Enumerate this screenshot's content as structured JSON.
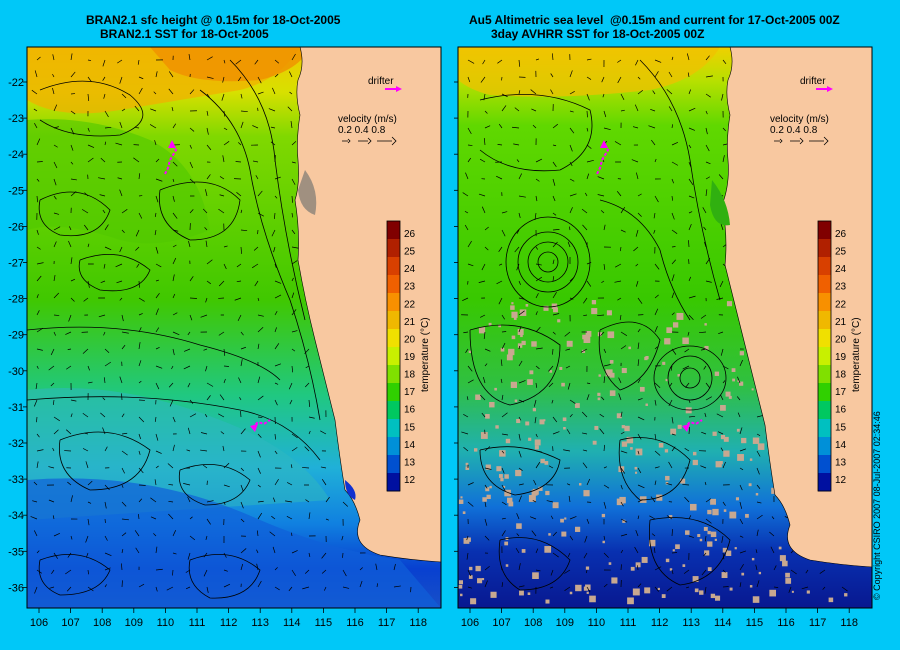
{
  "titles": {
    "left_line1": "BRAN2.1 sfc height @ 0.15m for 18-Oct-2005",
    "left_line2": "BRAN2.1 SST for 18-Oct-2005",
    "right_line1": "Au5 Altimetric sea level  @0.15m and current for 17-Oct-2005 00Z",
    "right_line2": "3day AVHRR SST for 18-Oct-2005 00Z"
  },
  "axes": {
    "lon_ticks": [
      "106",
      "107",
      "108",
      "109",
      "110",
      "111",
      "112",
      "113",
      "114",
      "115",
      "116",
      "117",
      "118"
    ],
    "lat_ticks": [
      "-22",
      "-23",
      "-24",
      "-25",
      "-26",
      "-27",
      "-28",
      "-29",
      "-30",
      "-31",
      "-32",
      "-33",
      "-34",
      "-35",
      "-36"
    ]
  },
  "legend": {
    "drifter_label": "drifter",
    "velocity_label": "velocity (m/s)",
    "velocity_scale": "0.2 0.4 0.8",
    "colorbar_label": "temperature (°C)",
    "colorbar_ticks": [
      "26",
      "25",
      "24",
      "23",
      "22",
      "21",
      "20",
      "19",
      "18",
      "17",
      "16",
      "15",
      "14",
      "13",
      "12"
    ],
    "colorbar_colors": [
      "#800000",
      "#b02000",
      "#d84000",
      "#f06000",
      "#f89000",
      "#f0b800",
      "#f0e000",
      "#c8f000",
      "#80e000",
      "#30d000",
      "#00c860",
      "#00c0c0",
      "#0090d8",
      "#0050d0",
      "#0010a0"
    ]
  },
  "copyright": "© Copyright CSIRO 2007    08-Jul-2007 02:34:46",
  "colors": {
    "background": "#00c8f8",
    "land": "#f8c8a0",
    "drifter": "#ff00ff",
    "no_data": "#c8a890"
  }
}
